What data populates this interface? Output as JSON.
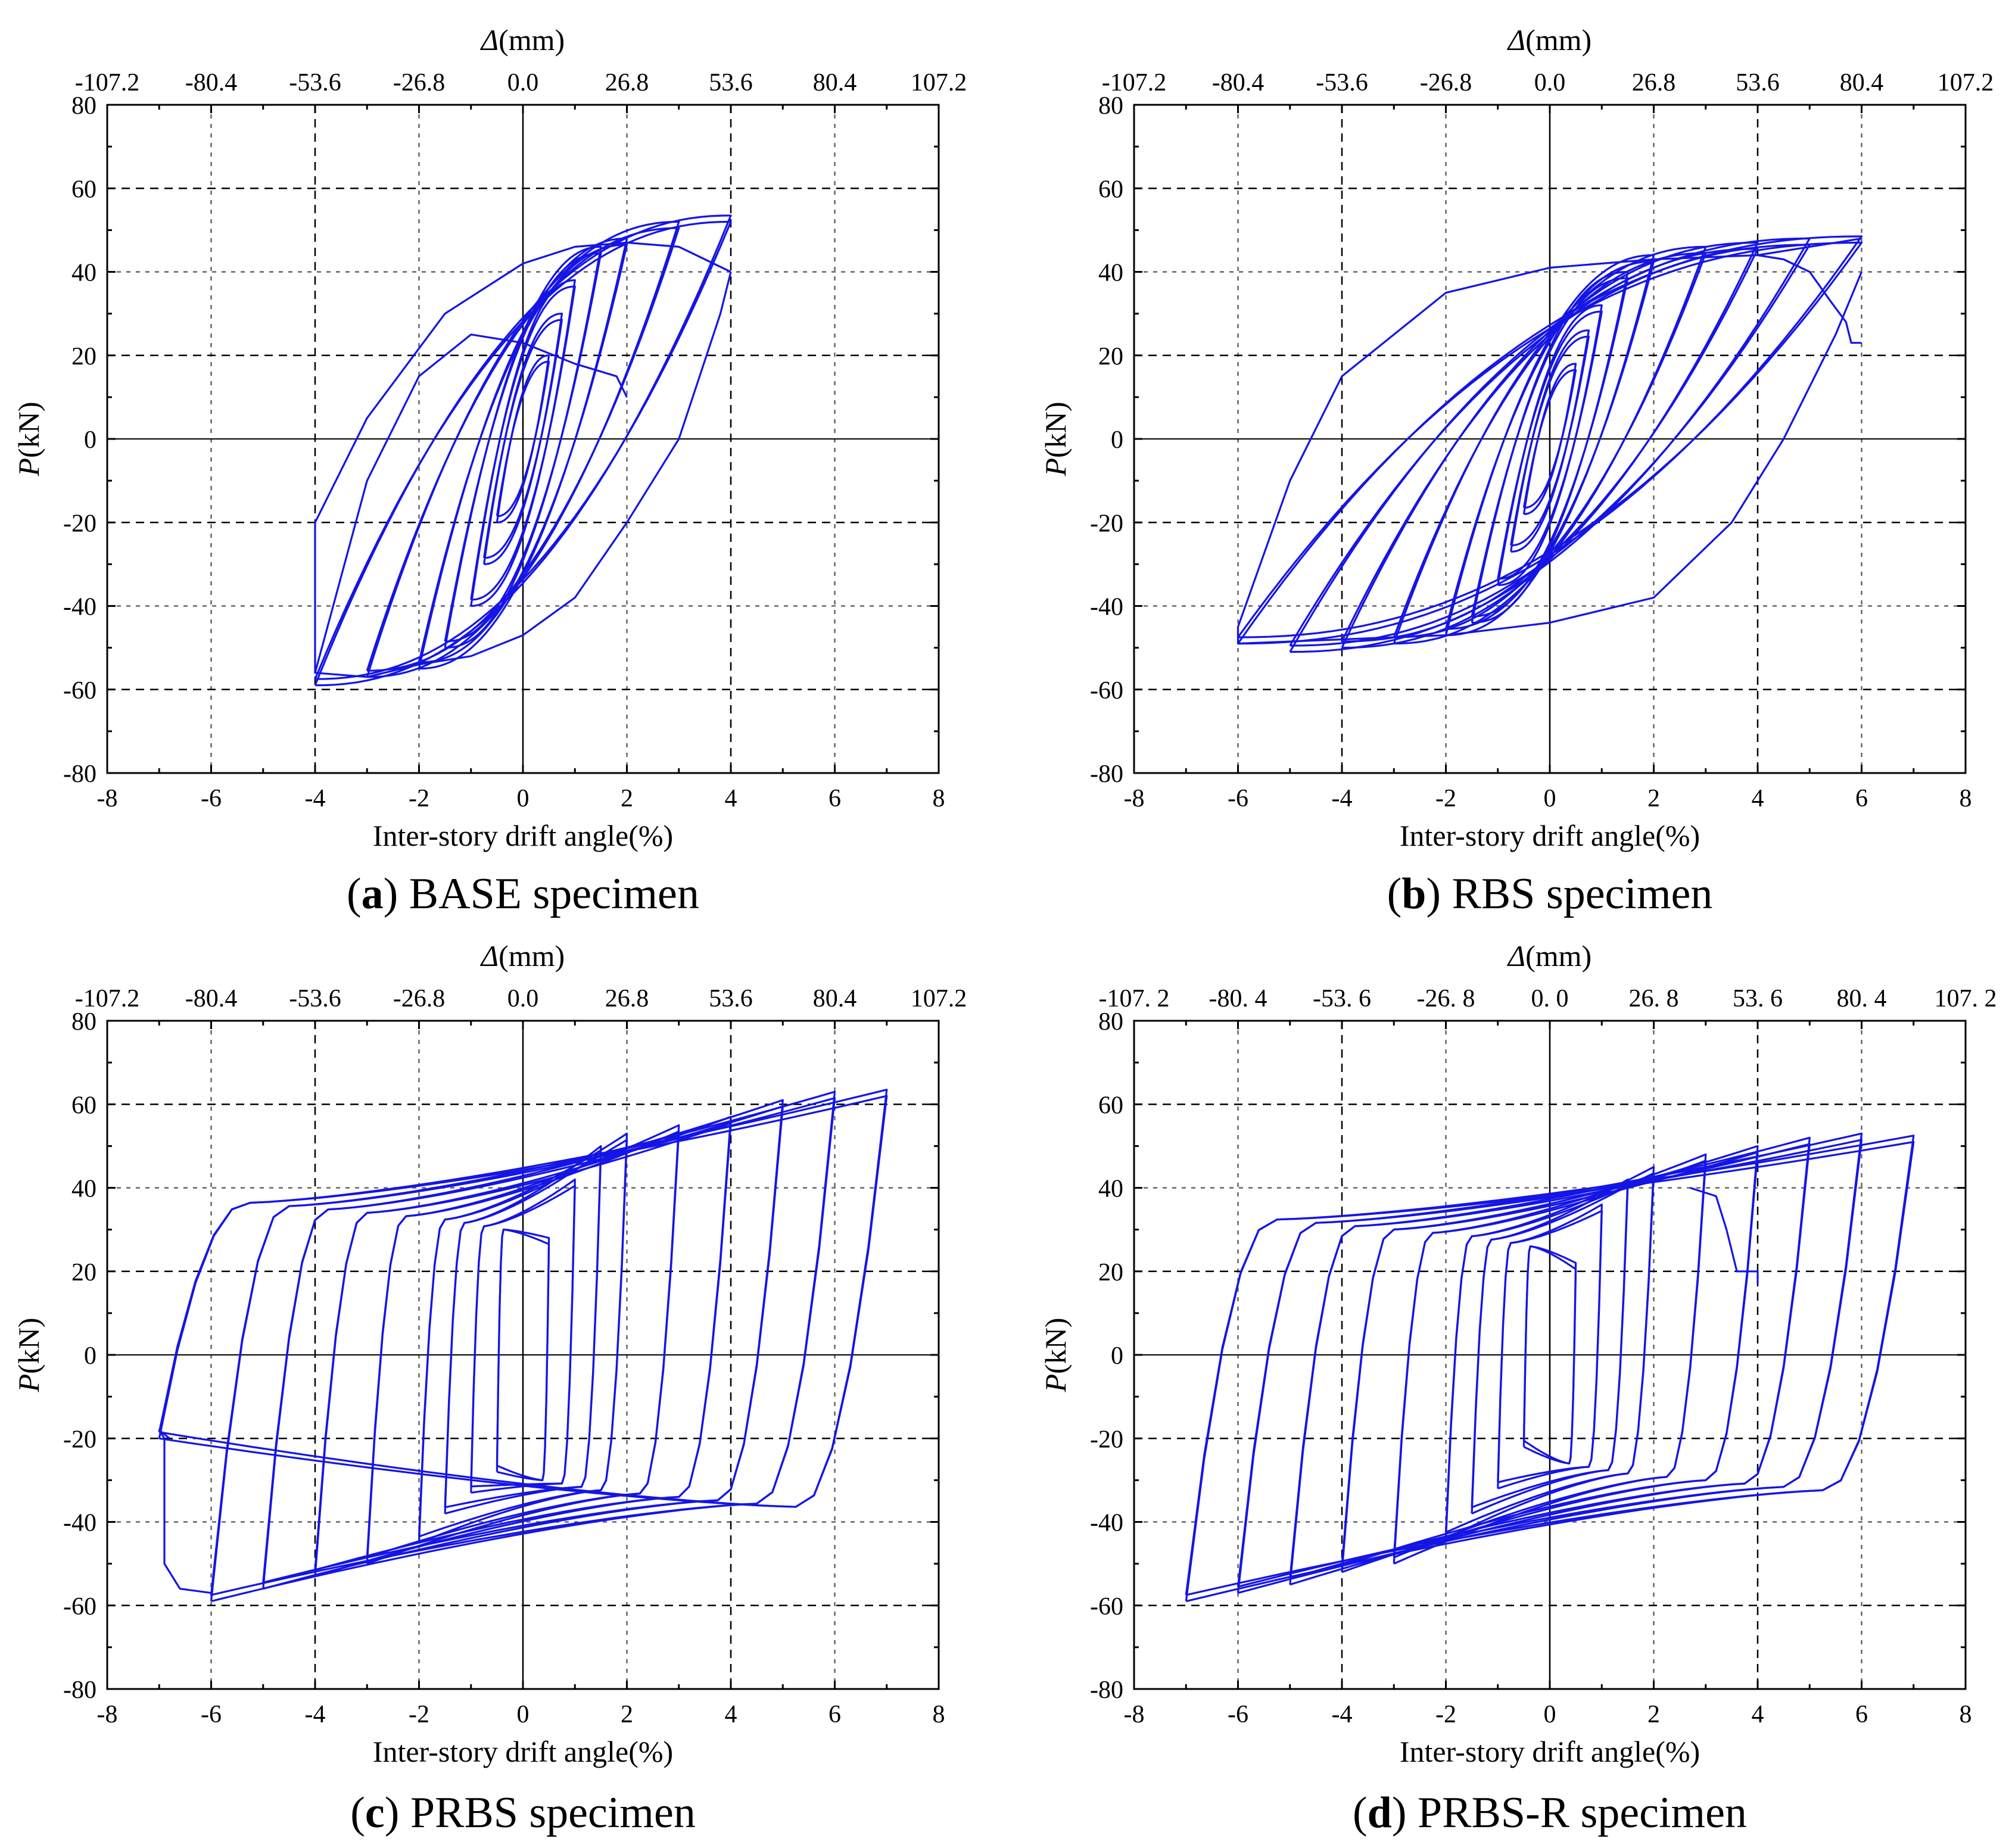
{
  "figure": {
    "series_color": "#1515e6",
    "grid_color": "#000000"
  },
  "chart_data": [
    {
      "type": "line",
      "panel": "a",
      "caption_letter": "a",
      "caption_text": "BASE specimen",
      "xlabel": "Inter-story drift angle(%)",
      "ylabel": "P(kN)",
      "ylabel_italic": "P",
      "ylabel_rest": "(kN)",
      "top_label_italic": "Δ",
      "top_label_rest": "(mm)",
      "xlim": [
        -8,
        8
      ],
      "ylim": [
        -80,
        80
      ],
      "x_ticks": [
        "-8",
        "-6",
        "-4",
        "-2",
        "0",
        "2",
        "4",
        "6",
        "8"
      ],
      "y_ticks": [
        "80",
        "60",
        "40",
        "20",
        "0",
        "-20",
        "-40",
        "-60",
        "-80"
      ],
      "top_ticks": [
        "-107.2",
        "-80.4",
        "-53.6",
        "-26.8",
        "0.0",
        "26.8",
        "53.6",
        "80.4",
        "107.2"
      ],
      "grid": "dashed",
      "cycles": [
        {
          "dmax": 0.5,
          "pmax": 20,
          "dmin": -0.5,
          "pmin": -20
        },
        {
          "dmax": 0.75,
          "pmax": 30,
          "dmin": -0.75,
          "pmin": -30
        },
        {
          "dmax": 1.0,
          "pmax": 38,
          "dmin": -1.0,
          "pmin": -40
        },
        {
          "dmax": 1.5,
          "pmax": 46,
          "dmin": -1.5,
          "pmin": -50
        },
        {
          "dmax": 2.0,
          "pmax": 48,
          "dmin": -2.0,
          "pmin": -55
        },
        {
          "dmax": 3.0,
          "pmax": 52,
          "dmin": -3.0,
          "pmin": -57
        },
        {
          "dmax": 4.0,
          "pmax": 53.5,
          "dmin": -4.0,
          "pmin": -59
        }
      ],
      "final_branch": [
        [
          4.0,
          40
        ],
        [
          3.0,
          46
        ],
        [
          2.0,
          47
        ],
        [
          1.0,
          46
        ],
        [
          0.0,
          42
        ],
        [
          -1.5,
          30
        ],
        [
          -3.0,
          5
        ],
        [
          -4.0,
          -20
        ],
        [
          -4.0,
          -56
        ],
        [
          -3,
          -57
        ],
        [
          -2,
          -54
        ],
        [
          -1,
          -52
        ],
        [
          0,
          -47
        ],
        [
          1,
          -38
        ],
        [
          2,
          -20
        ],
        [
          3,
          0
        ],
        [
          3.8,
          30
        ],
        [
          4.0,
          40
        ]
      ],
      "failure_trace": [
        [
          -4,
          -56
        ],
        [
          -3,
          -10
        ],
        [
          -2,
          15
        ],
        [
          -1,
          25
        ],
        [
          0,
          23
        ],
        [
          1,
          18
        ],
        [
          1.8,
          15
        ],
        [
          2.0,
          10
        ]
      ]
    },
    {
      "type": "line",
      "panel": "b",
      "caption_letter": "b",
      "caption_text": "RBS specimen",
      "xlabel": "Inter-story drift angle(%)",
      "ylabel": "P(kN)",
      "ylabel_italic": "P",
      "ylabel_rest": "(kN)",
      "top_label_italic": "Δ",
      "top_label_rest": "(mm)",
      "xlim": [
        -8,
        8
      ],
      "ylim": [
        -80,
        80
      ],
      "x_ticks": [
        "-8",
        "-6",
        "-4",
        "-2",
        "0",
        "2",
        "4",
        "6",
        "8"
      ],
      "y_ticks": [
        "80",
        "60",
        "40",
        "20",
        "0",
        "-20",
        "-40",
        "-60",
        "-80"
      ],
      "top_ticks": [
        "-107.2",
        "-80.4",
        "-53.6",
        "-26.8",
        "0.0",
        "26.8",
        "53.6",
        "80.4",
        "107.2"
      ],
      "grid": "dashed",
      "cycles": [
        {
          "dmax": 0.5,
          "pmax": 18,
          "dmin": -0.5,
          "pmin": -18
        },
        {
          "dmax": 0.75,
          "pmax": 26,
          "dmin": -0.75,
          "pmin": -27
        },
        {
          "dmax": 1.0,
          "pmax": 32,
          "dmin": -1.0,
          "pmin": -35
        },
        {
          "dmax": 1.5,
          "pmax": 40,
          "dmin": -1.5,
          "pmin": -44
        },
        {
          "dmax": 2.0,
          "pmax": 44,
          "dmin": -2.0,
          "pmin": -47
        },
        {
          "dmax": 3.0,
          "pmax": 46,
          "dmin": -3.0,
          "pmin": -49
        },
        {
          "dmax": 4.0,
          "pmax": 47,
          "dmin": -4.0,
          "pmin": -50
        },
        {
          "dmax": 5.0,
          "pmax": 48,
          "dmin": -5.0,
          "pmin": -51
        },
        {
          "dmax": 6.0,
          "pmax": 48.5,
          "dmin": -6.0,
          "pmin": -49
        }
      ],
      "final_branch": [
        [
          6.0,
          48
        ],
        [
          5.0,
          46
        ],
        [
          4.0,
          44
        ],
        [
          2.0,
          43
        ],
        [
          0.0,
          41
        ],
        [
          -2.0,
          35
        ],
        [
          -4.0,
          15
        ],
        [
          -5.0,
          -10
        ],
        [
          -6.0,
          -45
        ],
        [
          -6.0,
          -49
        ],
        [
          -4.0,
          -48
        ],
        [
          -2.0,
          -47
        ],
        [
          0,
          -44
        ],
        [
          2,
          -38
        ],
        [
          3.5,
          -20
        ],
        [
          4.5,
          0
        ],
        [
          5.5,
          25
        ],
        [
          6.0,
          40
        ]
      ],
      "failure_trace": [
        [
          4.0,
          44
        ],
        [
          4.5,
          43
        ],
        [
          5.0,
          40
        ],
        [
          5.4,
          33
        ],
        [
          5.7,
          28
        ],
        [
          5.8,
          23
        ],
        [
          6.0,
          23
        ]
      ]
    },
    {
      "type": "line",
      "panel": "c",
      "caption_letter": "c",
      "caption_text": "PRBS specimen",
      "xlabel": "Inter-story drift angle(%)",
      "ylabel": "P(kN)",
      "ylabel_italic": "P",
      "ylabel_rest": "(kN)",
      "top_label_italic": "Δ",
      "top_label_rest": "(mm)",
      "xlim": [
        -8,
        8
      ],
      "ylim": [
        -80,
        80
      ],
      "x_ticks": [
        "-8",
        "-6",
        "-4",
        "-2",
        "0",
        "2",
        "4",
        "6",
        "8"
      ],
      "y_ticks": [
        "80",
        "60",
        "40",
        "20",
        "0",
        "-20",
        "-40",
        "-60",
        "-80"
      ],
      "top_ticks": [
        "-107.2",
        "-80.4",
        "-53.6",
        "-26.8",
        "0.0",
        "26.8",
        "53.6",
        "80.4",
        "107.2"
      ],
      "grid": "dashed",
      "cycles": [
        {
          "dmax": 0.5,
          "pmax": 28,
          "dmin": -0.5,
          "pmin": -28
        },
        {
          "dmax": 1.0,
          "pmax": 42,
          "dmin": -1.0,
          "pmin": -33
        },
        {
          "dmax": 1.5,
          "pmax": 50,
          "dmin": -1.5,
          "pmin": -38
        },
        {
          "dmax": 2.0,
          "pmax": 53,
          "dmin": -2.0,
          "pmin": -45
        },
        {
          "dmax": 3.0,
          "pmax": 55,
          "dmin": -3.0,
          "pmin": -50
        },
        {
          "dmax": 4.0,
          "pmax": 57,
          "dmin": -4.0,
          "pmin": -53
        },
        {
          "dmax": 5.0,
          "pmax": 61,
          "dmin": -5.0,
          "pmin": -56
        },
        {
          "dmax": 6.0,
          "pmax": 63,
          "dmin": -6.0,
          "pmin": -59
        },
        {
          "dmax": 7.0,
          "pmax": 63.5,
          "dmin": -7.0,
          "pmin": -20
        }
      ],
      "pinched": true,
      "failure_trace": [
        [
          -6.0,
          -57
        ],
        [
          -6.6,
          -56
        ],
        [
          -6.9,
          -50
        ],
        [
          -6.9,
          -20
        ],
        [
          -7.0,
          -18
        ],
        [
          -6.8,
          -20
        ]
      ]
    },
    {
      "type": "line",
      "panel": "d",
      "caption_letter": "d",
      "caption_text": "PRBS-R specimen",
      "xlabel": "Inter-story drift angle(%)",
      "ylabel": "P(kN)",
      "ylabel_italic": "P",
      "ylabel_rest": "(kN)",
      "top_label_italic": "Δ",
      "top_label_rest": "(mm)",
      "xlim": [
        -8,
        8
      ],
      "ylim": [
        -80,
        80
      ],
      "x_ticks": [
        "-8",
        "-6",
        "-4",
        "-2",
        "0",
        "2",
        "4",
        "6",
        "8"
      ],
      "y_ticks": [
        "80",
        "60",
        "40",
        "20",
        "0",
        "-20",
        "-40",
        "-60",
        "-80"
      ],
      "top_ticks": [
        "-107. 2",
        "-80. 4",
        "-53. 6",
        "-26. 8",
        "0. 0",
        "26. 8",
        "53. 6",
        "80. 4",
        "107. 2"
      ],
      "grid": "dashed",
      "cycles": [
        {
          "dmax": 0.5,
          "pmax": 22,
          "dmin": -0.5,
          "pmin": -22
        },
        {
          "dmax": 1.0,
          "pmax": 36,
          "dmin": -1.0,
          "pmin": -32
        },
        {
          "dmax": 1.5,
          "pmax": 42,
          "dmin": -1.5,
          "pmin": -38
        },
        {
          "dmax": 2.0,
          "pmax": 45,
          "dmin": -2.0,
          "pmin": -44
        },
        {
          "dmax": 3.0,
          "pmax": 48,
          "dmin": -3.0,
          "pmin": -50
        },
        {
          "dmax": 4.0,
          "pmax": 50,
          "dmin": -4.0,
          "pmin": -52
        },
        {
          "dmax": 5.0,
          "pmax": 52,
          "dmin": -5.0,
          "pmin": -55
        },
        {
          "dmax": 6.0,
          "pmax": 53,
          "dmin": -6.0,
          "pmin": -57
        },
        {
          "dmax": 7.0,
          "pmax": 52.5,
          "dmin": -7.0,
          "pmin": -59
        }
      ],
      "pinched": true,
      "failure_trace": [
        [
          2.7,
          40
        ],
        [
          3.2,
          38
        ],
        [
          3.4,
          30
        ],
        [
          3.6,
          20
        ],
        [
          4.0,
          20
        ],
        [
          4.0,
          17
        ]
      ]
    }
  ]
}
